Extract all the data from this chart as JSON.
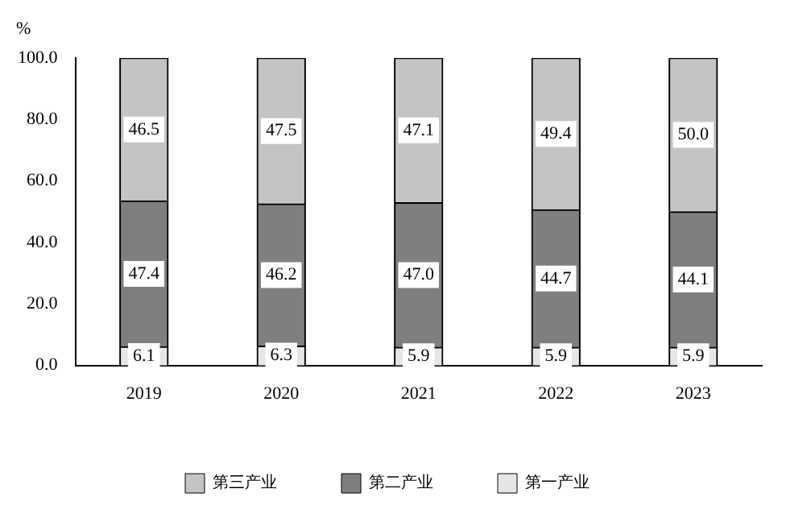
{
  "chart_data": {
    "type": "bar",
    "stacked": true,
    "ylabel": "%",
    "categories": [
      "2019",
      "2020",
      "2021",
      "2022",
      "2023"
    ],
    "series": [
      {
        "name": "第一产业",
        "color": "#e6e6e6",
        "values": [
          6.1,
          6.3,
          5.9,
          5.9,
          5.9
        ],
        "value_labels": [
          "6.1",
          "6.3",
          "5.9",
          "5.9",
          "5.9"
        ]
      },
      {
        "name": "第二产业",
        "color": "#7f7f7f",
        "values": [
          47.4,
          46.2,
          47.0,
          44.7,
          44.1
        ],
        "value_labels": [
          "47.4",
          "46.2",
          "47.0",
          "44.7",
          "44.1"
        ]
      },
      {
        "name": "第三产业",
        "color": "#c4c4c4",
        "values": [
          46.5,
          47.5,
          47.1,
          49.4,
          50.0
        ],
        "value_labels": [
          "46.5",
          "47.5",
          "47.1",
          "49.4",
          "50.0"
        ]
      }
    ],
    "ylim": [
      0,
      100
    ],
    "yticks": [
      {
        "value": 0,
        "label": "0.0"
      },
      {
        "value": 20,
        "label": "20.0"
      },
      {
        "value": 40,
        "label": "40.0"
      },
      {
        "value": 60,
        "label": "60.0"
      },
      {
        "value": 80,
        "label": "80.0"
      },
      {
        "value": 100,
        "label": "100.0"
      }
    ],
    "grid": false,
    "legend": "bottom"
  }
}
